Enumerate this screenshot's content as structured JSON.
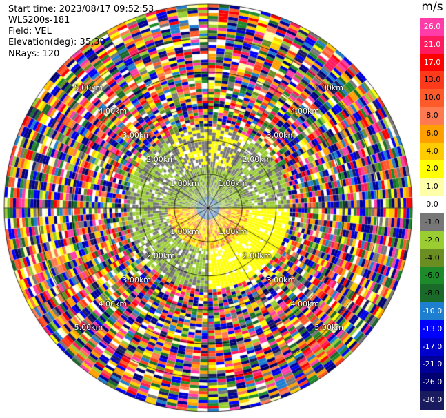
{
  "header": {
    "start_time": "Start time: 2023/08/17 09:52:53",
    "instrument": "WLS200s-181",
    "field": "Field: VEL",
    "elevation": "Elevation(deg): 35.30",
    "nrays": "NRays: 120"
  },
  "colorbar": {
    "unit": "m/s",
    "ticks": [
      "26.0",
      "21.0",
      "17.0",
      "13.0",
      "10.0",
      "8.0",
      "6.0",
      "4.0",
      "2.0",
      "1.0",
      "0.0",
      "-1.0",
      "-2.0",
      "-4.0",
      "-6.0",
      "-8.0",
      "-10.0",
      "-13.0",
      "-17.0",
      "-21.0",
      "-26.0",
      "-30.0"
    ],
    "colors": [
      "#ff3ca8",
      "#ff1a5e",
      "#ff0000",
      "#ff3a1a",
      "#ff5a2a",
      "#ff7a50",
      "#ffa000",
      "#ffcc00",
      "#ffff00",
      "#ffffaa",
      "#ffffff",
      "#777777",
      "#9acd32",
      "#6b8e23",
      "#1e8b2a",
      "#1a6a2a",
      "#1e7fd0",
      "#0000ff",
      "#0000cc",
      "#000099",
      "#000070",
      "#1a1a5e"
    ]
  },
  "chart_data": {
    "type": "heatmap",
    "projection": "polar-ppi",
    "field": "VEL",
    "units": "m/s",
    "nrays": 120,
    "max_range_km": 6.0,
    "range_ring_labels": [
      "1.00km",
      "2.00km",
      "3.00km",
      "4.00km",
      "5.00km"
    ],
    "regions": [
      {
        "range_km": [
          0.0,
          0.35
        ],
        "dominant_values": [
          -13.0,
          -8.0
        ]
      },
      {
        "range_km": [
          0.35,
          1.2
        ],
        "dominant_values": [
          -2.0,
          -4.0,
          2.0,
          4.0
        ]
      },
      {
        "range_km": [
          1.2,
          2.4
        ],
        "dominant_values": [
          -1.0,
          -2.0,
          2.0
        ]
      },
      {
        "range_km": [
          2.4,
          6.0
        ],
        "dominant_values": "noise"
      }
    ]
  }
}
